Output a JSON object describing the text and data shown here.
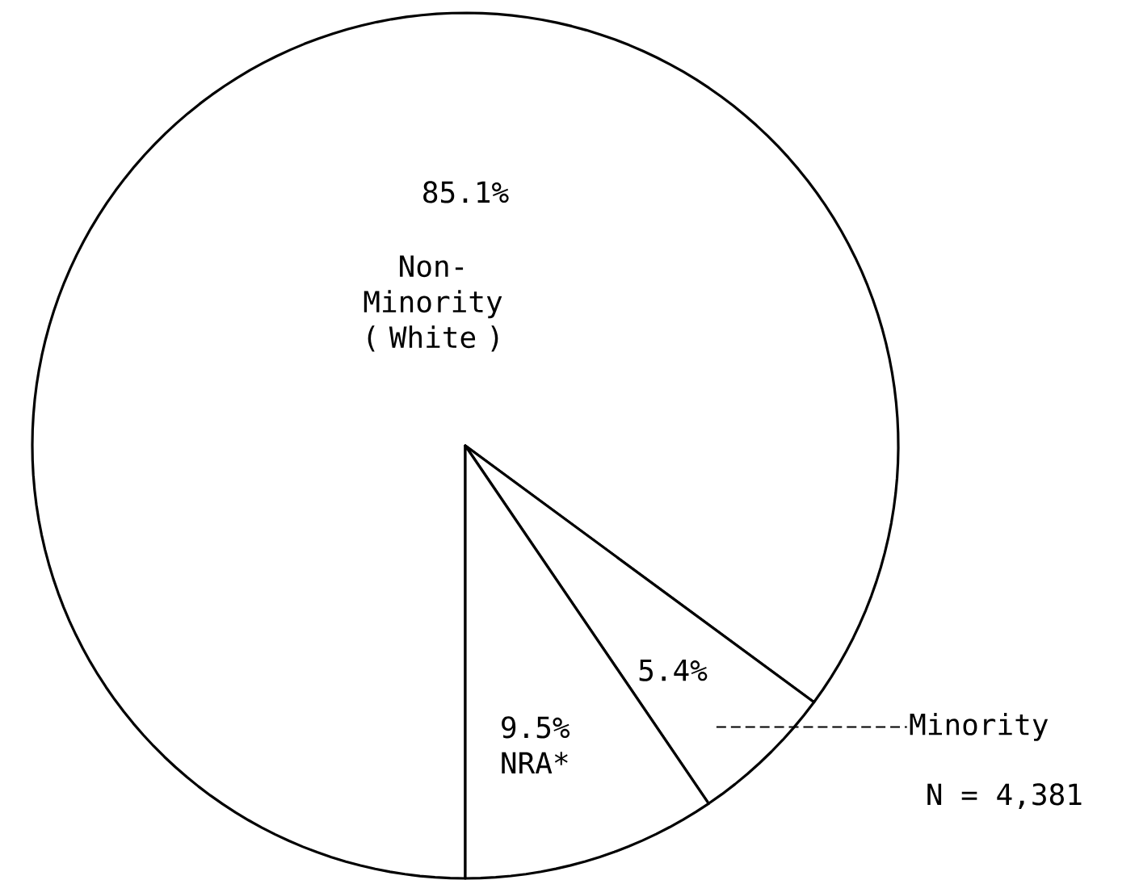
{
  "chart_data": {
    "type": "pie",
    "categories": [
      "Non-Minority ( White )",
      "Minority",
      "NRA*"
    ],
    "values": [
      85.1,
      5.4,
      9.5
    ],
    "value_labels": [
      "85.1%",
      "5.4%",
      "9.5%"
    ],
    "colors": [
      "#ffffff",
      "#ffffff",
      "#ffffff"
    ],
    "annotations": [
      "N = 4,381"
    ]
  }
}
